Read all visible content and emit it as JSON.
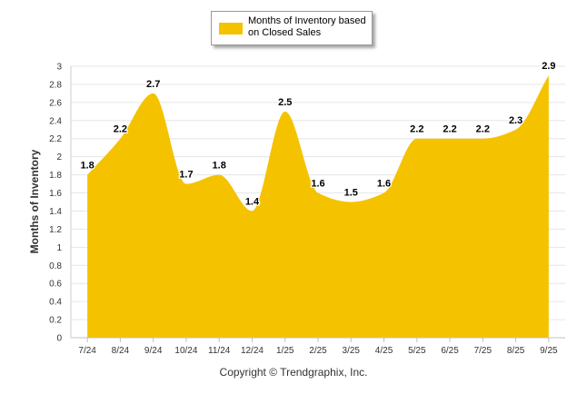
{
  "chart_data": {
    "type": "area",
    "categories": [
      "7/24",
      "8/24",
      "9/24",
      "10/24",
      "11/24",
      "12/24",
      "1/25",
      "2/25",
      "3/25",
      "4/25",
      "5/25",
      "6/25",
      "7/25",
      "8/25",
      "9/25"
    ],
    "series": [
      {
        "name": "Months of Inventory based on Closed Sales",
        "values": [
          1.8,
          2.2,
          2.7,
          1.7,
          1.8,
          1.4,
          2.5,
          1.6,
          1.5,
          1.6,
          2.2,
          2.2,
          2.2,
          2.3,
          2.9
        ],
        "color": "#f5c200"
      }
    ],
    "title": "",
    "xlabel": "",
    "ylabel": "Months of Inventory",
    "ylim": [
      0,
      3
    ],
    "yticks": [
      "0",
      "0.2",
      "0.4",
      "0.6",
      "0.8",
      "1",
      "1.2",
      "1.4",
      "1.6",
      "1.8",
      "2",
      "2.2",
      "2.4",
      "2.6",
      "2.8",
      "3"
    ],
    "data_labels": [
      "1.8",
      "2.2",
      "2.7",
      "1.7",
      "1.8",
      "1.4",
      "2.5",
      "1.6",
      "1.5",
      "1.6",
      "2.2",
      "2.2",
      "2.2",
      "2.3",
      "2.9"
    ],
    "legend": {
      "position": "top-center",
      "label_line1": "Months of Inventory based",
      "label_line2": "on Closed Sales"
    },
    "grid": true
  },
  "footer": {
    "copyright": "Copyright © Trendgraphix, Inc."
  },
  "colors": {
    "fill": "#f5c200",
    "grid": "#e6e6e6",
    "axis": "#999999"
  }
}
